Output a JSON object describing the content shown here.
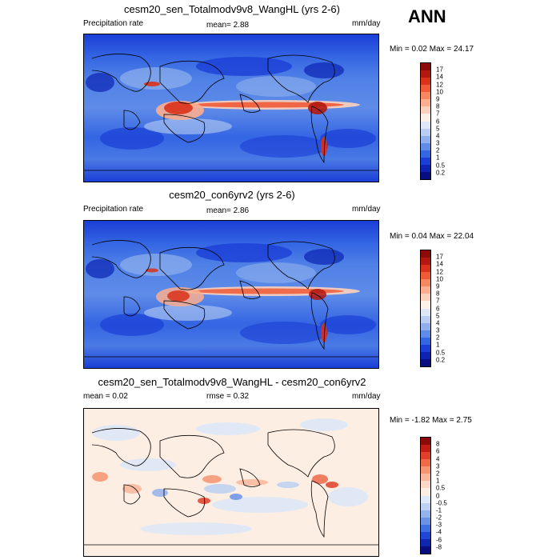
{
  "season": "ANN",
  "panels": [
    {
      "title": "cesm20_sen_Totalmodv9v8_WangHL (yrs 2-6)",
      "left_label": "Precipitation rate",
      "center_label": "mean=   2.88",
      "units": "mm/day",
      "minmax": "Min =   0.02 Max =  24.17",
      "colorbar": {
        "labels": [
          "17",
          "14",
          "12",
          "10",
          "9",
          "8",
          "7",
          "6",
          "5",
          "4",
          "3",
          "2",
          "1",
          "0.5",
          "0.2"
        ],
        "colors": [
          "#8c0a0a",
          "#b2180f",
          "#d9311a",
          "#f05a36",
          "#f7875f",
          "#fcae8f",
          "#fdd2bd",
          "#fdf0e6",
          "#dde7f7",
          "#b8cdf1",
          "#8fb0ec",
          "#5f8ce8",
          "#3465e3",
          "#1a3ed6",
          "#0c23b3",
          "#070f80"
        ]
      }
    },
    {
      "title": "cesm20_con6yrv2 (yrs 2-6)",
      "left_label": "Precipitation rate",
      "center_label": "mean=   2.86",
      "units": "mm/day",
      "minmax": "Min =   0.04 Max =  22.04",
      "colorbar": {
        "labels": [
          "17",
          "14",
          "12",
          "10",
          "9",
          "8",
          "7",
          "6",
          "5",
          "4",
          "3",
          "2",
          "1",
          "0.5",
          "0.2"
        ],
        "colors": [
          "#8c0a0a",
          "#b2180f",
          "#d9311a",
          "#f05a36",
          "#f7875f",
          "#fcae8f",
          "#fdd2bd",
          "#fdf0e6",
          "#dde7f7",
          "#b8cdf1",
          "#8fb0ec",
          "#5f8ce8",
          "#3465e3",
          "#1a3ed6",
          "#0c23b3",
          "#070f80"
        ]
      }
    },
    {
      "title": "cesm20_sen_Totalmodv9v8_WangHL - cesm20_con6yrv2",
      "left_label": "mean =   0.02",
      "center_label": "rmse =   0.32",
      "units": "mm/day",
      "minmax": "Min =  -1.82 Max =   2.75",
      "colorbar": {
        "labels": [
          "8",
          "6",
          "4",
          "3",
          "2",
          "1",
          "0.5",
          "0",
          "-0.5",
          "-1",
          "-2",
          "-3",
          "-4",
          "-6",
          "-8"
        ],
        "colors": [
          "#8c0a0a",
          "#c21d14",
          "#e0402a",
          "#f06a48",
          "#f79473",
          "#fbb79c",
          "#fdd8c6",
          "#fdeee4",
          "#dde8f8",
          "#bcd0f2",
          "#93b3ec",
          "#6a93e8",
          "#3f6fe3",
          "#2046d6",
          "#0f27b0",
          "#070f80"
        ]
      }
    }
  ]
}
